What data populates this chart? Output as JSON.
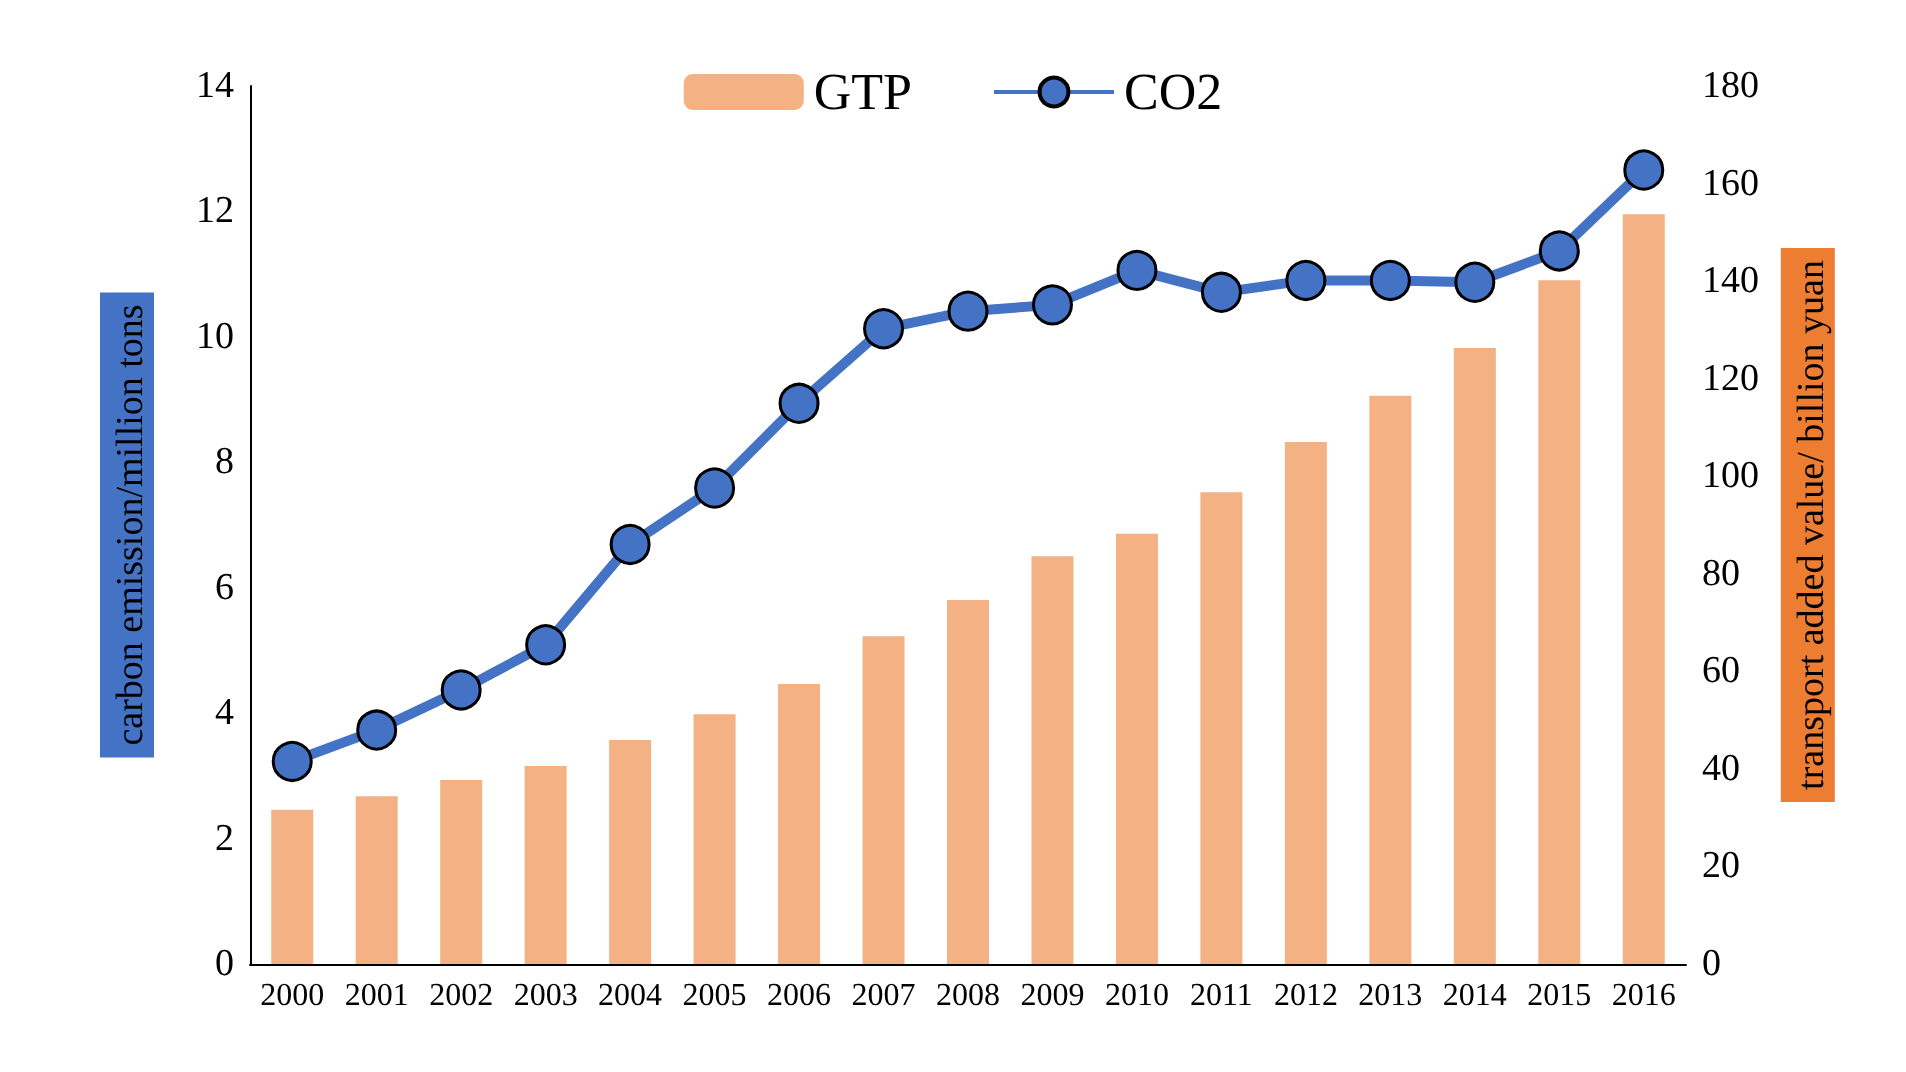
{
  "chart_data": {
    "type": "bar",
    "ylabel": "carbon emission/million tons",
    "y2label": "transport added value/ billion yuan",
    "categories": [
      "2000",
      "2001",
      "2002",
      "2003",
      "2004",
      "2005",
      "2006",
      "2007",
      "2008",
      "2009",
      "2010",
      "2011",
      "2012",
      "2013",
      "2014",
      "2015",
      "2016"
    ],
    "series": [
      {
        "name": "GTP",
        "axis": "y2",
        "color": "#f4b183",
        "values": [
          31.6,
          34.4,
          37.7,
          40.6,
          45.9,
          51.2,
          57.4,
          67.2,
          74.6,
          83.6,
          88.2,
          96.7,
          107,
          116.5,
          126.3,
          140.2,
          153.7
        ]
      },
      {
        "name": "CO2",
        "type": "line",
        "axis": "y",
        "color": "#4472c4",
        "marker": "circle",
        "values": [
          3.23,
          3.73,
          4.37,
          5.09,
          6.69,
          7.59,
          8.94,
          10.13,
          10.41,
          10.51,
          11.06,
          10.71,
          10.9,
          10.9,
          10.87,
          11.37,
          12.66
        ]
      }
    ],
    "ylim": [
      0,
      14
    ],
    "yticks": [
      0,
      2,
      4,
      6,
      8,
      10,
      12,
      14
    ],
    "y2lim": [
      0,
      180
    ],
    "y2ticks": [
      0,
      20,
      40,
      60,
      80,
      100,
      120,
      140,
      160,
      180
    ],
    "grid": false,
    "legend": "top"
  }
}
